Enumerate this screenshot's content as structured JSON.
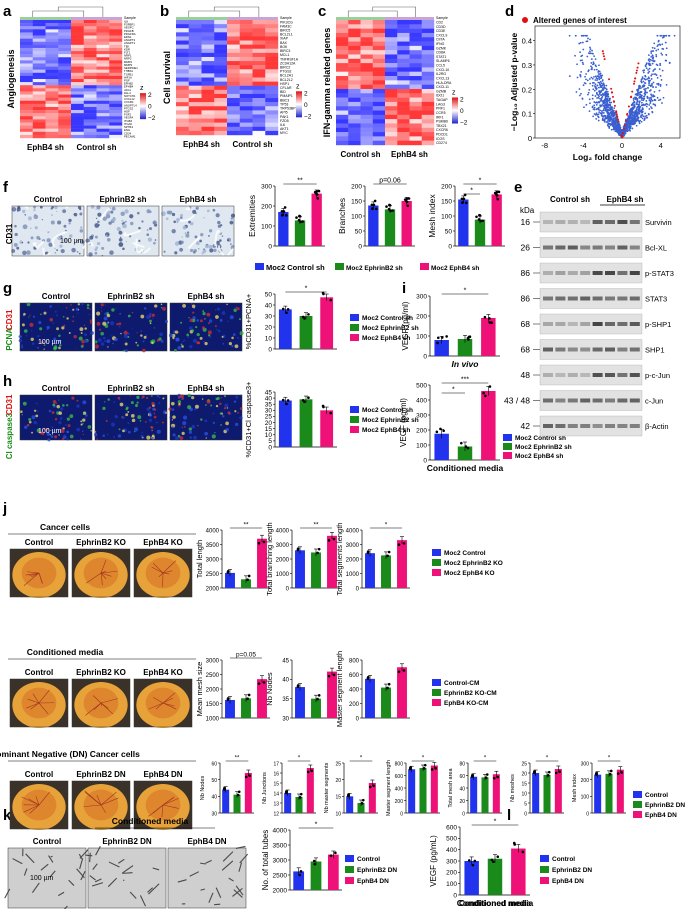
{
  "panel_letters": [
    "a",
    "b",
    "c",
    "d",
    "e",
    "f",
    "g",
    "h",
    "i",
    "j",
    "k",
    "l"
  ],
  "heatmaps": {
    "a": {
      "ylabel": "Angiogenesis",
      "groups": [
        "EphB4 sh",
        "Control sh"
      ],
      "zlabel": "z",
      "zticks": [
        "2",
        "0",
        "−2"
      ],
      "sample": "Sample",
      "genes": [
        "IL8",
        "FGFBP1",
        "VEGFC",
        "PDGFB",
        "PDGFRA",
        "EDN1",
        "ANGPT2",
        "ANGPT1",
        "TEK",
        "KDR",
        "FLT1",
        "NRP1",
        "NRP2",
        "MMP2",
        "MMP9",
        "SERPINE1",
        "THBS1",
        "TGFB1",
        "HIF1A",
        "PGF",
        "EFNB2",
        "EPHB4",
        "JAG1",
        "DLL4",
        "NOTCH1",
        "CXCL12",
        "CXCR4",
        "ANGPTL4",
        "PTGS2",
        "HGF",
        "FGF2",
        "VEGFA",
        "ITGB3",
        "ITGAV",
        "SPHK1",
        "ENG",
        "CD34",
        "PECAM1"
      ]
    },
    "b": {
      "ylabel": "Cell survival",
      "groups": [
        "EphB4 sh",
        "Control sh"
      ],
      "zlabel": "z",
      "zticks": [
        "2",
        "0",
        "−2"
      ],
      "sample": "Sample",
      "genes": [
        "PIK3CG",
        "FAM3C",
        "BIRC5",
        "BCL2L1",
        "XIAP",
        "BAX",
        "BOK",
        "BIRC3",
        "MCL1",
        "TNFRSF1A",
        "ZC3H12A",
        "BIRC2",
        "PTGS2",
        "BCL2A1",
        "BCL2L2",
        "HSP1",
        "CFLAR",
        "BID",
        "PMAIP1",
        "BBC3",
        "TP53",
        "TRP53BP1",
        "API5",
        "PAK1",
        "FZD5",
        "IL6",
        "AKT1",
        "MYC"
      ]
    },
    "c": {
      "ylabel": "IFN-gamma related genes",
      "groups": [
        "Control sh",
        "EphB4 sh"
      ],
      "zlabel": "z",
      "zticks": [
        "2",
        "0",
        "−2"
      ],
      "sample": "Sample",
      "genes": [
        "CD2",
        "CD3D",
        "CD3E",
        "CXCL9",
        "CIITA",
        "IFNG",
        "GZMK",
        "CD8A",
        "STAT1",
        "SLAMF6",
        "CCL5",
        "CXCL10",
        "IL2RG",
        "CXCL13",
        "HLA-DRA",
        "CXCL11",
        "GZMB",
        "IDO1",
        "TAGAP",
        "LAG3",
        "PRF1",
        "CCR5",
        "IRF1",
        "PSMB9",
        "TBX21",
        "CXCR6",
        "PDCD1",
        "ICOS",
        "CD274"
      ]
    }
  },
  "volcano": {
    "legend": "Altered genes of interest",
    "xlabel": "Log₂ fold change",
    "ylabel": "−Log₁₀ Adjusted p-value",
    "xticks": [
      "-8",
      "-4",
      "0",
      "4"
    ],
    "yticks": [
      "0",
      "0.1",
      "0.2",
      "0.3",
      "0.4"
    ]
  },
  "panel_f": {
    "images": [
      "Control",
      "EphrinB2 sh",
      "EphB4 sh"
    ],
    "side_label": "CD31",
    "scale": "100 µm",
    "charts": [
      {
        "ylabel": "Extremities",
        "yticks": [
          "0",
          "100",
          "200",
          "300"
        ],
        "values": [
          170,
          128,
          262
        ],
        "sig": "**"
      },
      {
        "ylabel": "Branches",
        "yticks": [
          "0",
          "50",
          "100",
          "150",
          "200"
        ],
        "values": [
          135,
          122,
          150
        ],
        "sig": "p=0.06"
      },
      {
        "ylabel": "Mesh index",
        "yticks": [
          "0",
          "50",
          "100",
          "150",
          "200"
        ],
        "values": [
          155,
          88,
          172
        ],
        "sig": "*",
        "sig2": "*"
      }
    ],
    "legend": [
      "Moc2 Control sh",
      "Moc2 EphrinB2 sh",
      "Moc2 EphB4 sh"
    ]
  },
  "panel_g": {
    "images": [
      "Control",
      "EphrinB2 sh",
      "EphB4 sh"
    ],
    "side_green": "PCNA",
    "side_red": "CD31",
    "scale": "100 µm",
    "ylabel": "%CD31+PCNA+",
    "yticks": [
      "0",
      "10",
      "20",
      "30",
      "40",
      "50"
    ],
    "values": [
      36,
      30,
      47
    ],
    "sig": "*",
    "legend": [
      "Moc2 Control sh",
      "Moc2 EphrinB2 sh",
      "Moc2 EphB4 sh"
    ]
  },
  "panel_h": {
    "images": [
      "Control",
      "EphrinB2 sh",
      "EphB4 sh"
    ],
    "side_green": "Cl caspase3",
    "side_red": "CD31",
    "scale": "100 µm",
    "ylabel": "%CD31+Cl caspase3+",
    "yticks": [
      "0",
      "5",
      "10",
      "15",
      "20",
      "25",
      "30",
      "35",
      "40",
      "45"
    ],
    "values": [
      38,
      39,
      30
    ],
    "sig": "",
    "legend": [
      "Moc2 Control sh",
      "Moc2 EphrinB2 sh",
      "Moc2 EphB4 sh"
    ]
  },
  "panel_i": {
    "top": {
      "ylabel": "VEGF (pg/ml)",
      "yticks": [
        "0",
        "100",
        "200",
        "300"
      ],
      "values": [
        80,
        85,
        190
      ],
      "caption": "In vivo",
      "sig": "*"
    },
    "bottom": {
      "ylabel": "VEGF (pg/ml)",
      "yticks": [
        "0",
        "100",
        "200",
        "300",
        "400",
        "500"
      ],
      "values": [
        175,
        90,
        460
      ],
      "caption": "Conditioned media",
      "sig": "***",
      "sig2": "*"
    },
    "legend": [
      "Moc2 Control sh",
      "Moc2 EphrinB2 sh",
      "Moc2 EphB4 sh"
    ]
  },
  "panel_e": {
    "kda_label": "kDa",
    "headers": [
      "Control sh",
      "EphB4 sh"
    ],
    "rows": [
      {
        "kda": "16",
        "name": "Survivin"
      },
      {
        "kda": "26",
        "name": "Bcl-XL"
      },
      {
        "kda": "86",
        "name": "p-STAT3"
      },
      {
        "kda": "86",
        "name": "STAT3"
      },
      {
        "kda": "68",
        "name": "p-SHP1"
      },
      {
        "kda": "68",
        "name": "SHP1"
      },
      {
        "kda": "48",
        "name": "p-c-Jun"
      },
      {
        "kda": "43 / 48",
        "name": "c-Jun"
      },
      {
        "kda": "42",
        "name": "β-Actin"
      }
    ]
  },
  "panel_j": {
    "rows": [
      {
        "title": "Cancer cells",
        "images": [
          "Control",
          "EphrinB2 KO",
          "EphB4 KO"
        ],
        "charts": [
          {
            "ylabel": "Total length",
            "yticks": [
              "2000",
              "2500",
              "3000",
              "3500",
              "4000"
            ],
            "min": 2000,
            "max": 4000,
            "values": [
              2520,
              2300,
              3700
            ],
            "sig": "**"
          },
          {
            "ylabel": "Total branching length",
            "yticks": [
              "0",
              "1000",
              "2000",
              "3000",
              "4000"
            ],
            "min": 0,
            "max": 4000,
            "values": [
              2600,
              2450,
              3600
            ],
            "sig": "**"
          },
          {
            "ylabel": "Total segments length",
            "yticks": [
              "0",
              "1000",
              "2000",
              "3000",
              "4000"
            ],
            "min": 0,
            "max": 4000,
            "values": [
              2400,
              2250,
              3300
            ],
            "sig": "*"
          }
        ],
        "legend": [
          "Moc2 Control",
          "Moc2 EphrinB2 KO",
          "Moc2 EphB4 KO"
        ]
      },
      {
        "title": "Conditioned media",
        "images": [
          "Control",
          "EphrinB2 KO",
          "EphB4 KO"
        ],
        "charts": [
          {
            "ylabel": "Mean mesh size",
            "yticks": [
              "1000",
              "1500",
              "2000",
              "2500",
              "3000"
            ],
            "min": 1000,
            "max": 3000,
            "values": [
              1620,
              1680,
              2340
            ],
            "sig": "p=0.05"
          },
          {
            "ylabel": "Nb Nodes",
            "yticks": [
              "30",
              "35",
              "40",
              "45"
            ],
            "min": 30,
            "max": 45,
            "values": [
              38,
              35,
              42
            ],
            "sig": ""
          },
          {
            "ylabel": "Master segment length",
            "yticks": [
              "0",
              "200",
              "400",
              "600",
              "800"
            ],
            "min": 0,
            "max": 800,
            "values": [
              540,
              420,
              700
            ],
            "sig": ""
          }
        ],
        "legend": [
          "Control-CM",
          "EphrinB2 KO-CM",
          "EphB4 KO-CM"
        ]
      },
      {
        "title": "Dominant Negative (DN) Cancer cells",
        "images": [
          "Control",
          "EphrinB2 DN",
          "EphB4 DN"
        ],
        "charts": [
          {
            "ylabel": "Nb Nodes",
            "yticks": [
              "30",
              "40",
              "50",
              "60"
            ],
            "min": 30,
            "max": 60,
            "values": [
              44,
              41,
              54
            ],
            "sig": "**"
          },
          {
            "ylabel": "Nb Junctions",
            "yticks": [
              "12",
              "13",
              "14",
              "15",
              "16",
              "17"
            ],
            "min": 12,
            "max": 17,
            "values": [
              14,
              13.6,
              16.5
            ],
            "sig": "*"
          },
          {
            "ylabel": "Nb master segments",
            "yticks": [
              "10",
              "15",
              "20",
              "25"
            ],
            "min": 10,
            "max": 25,
            "values": [
              15,
              13,
              19
            ],
            "sig": "*"
          },
          {
            "ylabel": "Master segment length",
            "yticks": [
              "0",
              "200",
              "400",
              "600",
              "800"
            ],
            "min": 0,
            "max": 800,
            "values": [
              700,
              720,
              760
            ],
            "sig": "*"
          },
          {
            "ylabel": "Total mesh area",
            "yticks": [
              "0",
              "20",
              "40",
              "60",
              "80"
            ],
            "min": 0,
            "max": 80,
            "values": [
              58,
              57,
              62
            ],
            "sig": "*"
          },
          {
            "ylabel": "Nb meshes",
            "yticks": [
              "0",
              "5",
              "10",
              "15",
              "20",
              "25"
            ],
            "min": 0,
            "max": 25,
            "values": [
              20,
              19,
              22
            ],
            "sig": "*"
          },
          {
            "ylabel": "Mesh index",
            "yticks": [
              "0",
              "100",
              "200",
              "300"
            ],
            "min": 0,
            "max": 300,
            "values": [
              230,
              235,
              260
            ],
            "sig": "*"
          }
        ],
        "legend": [
          "Control",
          "EphrinB2 DN",
          "EphB4 DN"
        ]
      }
    ]
  },
  "panel_k": {
    "title": "Conditioned media",
    "images": [
      "Control",
      "EphrinB2 DN",
      "EphB4 DN"
    ],
    "scale": "100 µm",
    "ylabel": "No. of total tubes",
    "yticks": [
      "2000",
      "2500",
      "3000",
      "3500",
      "4000"
    ],
    "min": 2000,
    "max": 4000,
    "values": [
      2620,
      2950,
      3180
    ],
    "sig": "*",
    "legend": [
      "Control",
      "EphrinB2 DN",
      "EphB4 DN"
    ]
  },
  "panel_l": {
    "ylabel": "VEGF (pg/mL)",
    "yticks": [
      "0",
      "100",
      "200",
      "300",
      "400",
      "500",
      "600"
    ],
    "min": 0,
    "max": 600,
    "values": [
      300,
      320,
      410
    ],
    "sig": "*",
    "caption": "Conditioned media",
    "legend": [
      "Control",
      "EphrinB2 DN",
      "EphB4 DN"
    ]
  },
  "colors": {
    "blue": "#2233ee",
    "green": "#1a8a1a",
    "pink": "#ee1177",
    "red": "#dd1111"
  }
}
